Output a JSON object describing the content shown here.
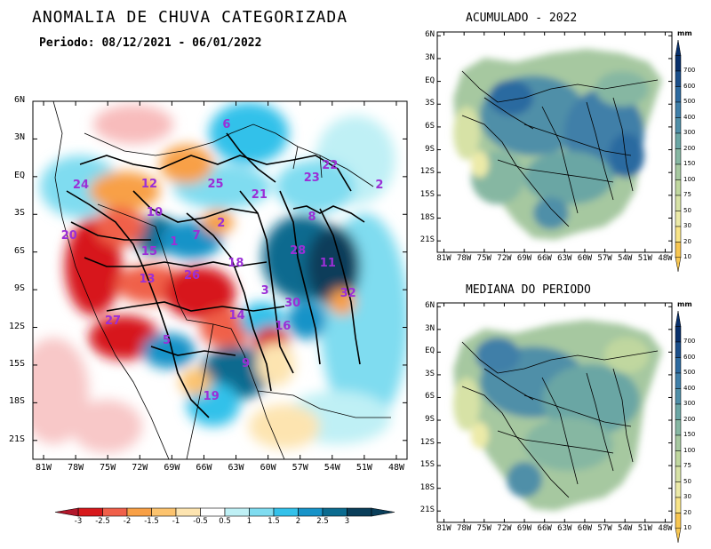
{
  "header": {
    "title": "ANOMALIA DE CHUVA CATEGORIZADA",
    "period": "Periodo: 08/12/2021 - 06/01/2022"
  },
  "main_map": {
    "lat_labels": [
      "6N",
      "3N",
      "EQ",
      "3S",
      "6S",
      "9S",
      "12S",
      "15S",
      "18S",
      "21S"
    ],
    "lon_labels": [
      "81W",
      "78W",
      "75W",
      "72W",
      "69W",
      "66W",
      "63W",
      "60W",
      "57W",
      "54W",
      "51W",
      "48W"
    ],
    "basins": [
      {
        "id": "24",
        "x": -77.6,
        "y": -0.8
      },
      {
        "id": "12",
        "x": -71.2,
        "y": -0.7
      },
      {
        "id": "25",
        "x": -65.0,
        "y": -0.7
      },
      {
        "id": "21",
        "x": -60.9,
        "y": -1.6
      },
      {
        "id": "23",
        "x": -56.0,
        "y": -0.2
      },
      {
        "id": "22",
        "x": -54.3,
        "y": 0.8
      },
      {
        "id": "2",
        "x": -49.3,
        "y": -0.8
      },
      {
        "id": "6",
        "x": -63.6,
        "y": 4.0
      },
      {
        "id": "10",
        "x": -70.7,
        "y": -3.0
      },
      {
        "id": "2",
        "x": -64.1,
        "y": -3.8
      },
      {
        "id": "8",
        "x": -55.6,
        "y": -3.3
      },
      {
        "id": "20",
        "x": -78.7,
        "y": -4.8
      },
      {
        "id": "1",
        "x": -68.5,
        "y": -5.3
      },
      {
        "id": "7",
        "x": -66.4,
        "y": -4.8
      },
      {
        "id": "15",
        "x": -71.2,
        "y": -6.1
      },
      {
        "id": "28",
        "x": -57.3,
        "y": -6.0
      },
      {
        "id": "18",
        "x": -63.1,
        "y": -7.0
      },
      {
        "id": "11",
        "x": -54.5,
        "y": -7.0
      },
      {
        "id": "13",
        "x": -71.4,
        "y": -8.3
      },
      {
        "id": "26",
        "x": -67.2,
        "y": -8.0
      },
      {
        "id": "3",
        "x": -60.0,
        "y": -9.2
      },
      {
        "id": "32",
        "x": -52.6,
        "y": -9.4
      },
      {
        "id": "30",
        "x": -57.8,
        "y": -10.2
      },
      {
        "id": "14",
        "x": -63.0,
        "y": -11.2
      },
      {
        "id": "16",
        "x": -58.7,
        "y": -12.0
      },
      {
        "id": "27",
        "x": -74.6,
        "y": -11.6
      },
      {
        "id": "5",
        "x": -69.2,
        "y": -13.2
      },
      {
        "id": "9",
        "x": -61.8,
        "y": -15.0
      },
      {
        "id": "19",
        "x": -65.4,
        "y": -17.6
      }
    ]
  },
  "colorbar": {
    "labels": [
      "-3",
      "-2.5",
      "-2",
      "-1.5",
      "-1",
      "-0.5",
      "0.5",
      "1",
      "1.5",
      "2",
      "2.5",
      "3"
    ],
    "colors": [
      "#d7191c",
      "#f0604a",
      "#f8a046",
      "#fcc36e",
      "#fde4b0",
      "#ffffff",
      "#bff0f5",
      "#7fdcf0",
      "#33c1ea",
      "#1793c8",
      "#0b6b8f",
      "#0a3e5a"
    ]
  },
  "accumulated": {
    "title": "ACUMULADO - 2022"
  },
  "median": {
    "title": "MEDIANA DO PERIODO"
  },
  "small_map": {
    "lat_labels": [
      "6N",
      "3N",
      "EQ",
      "3S",
      "6S",
      "9S",
      "12S",
      "15S",
      "18S",
      "21S"
    ],
    "lon_labels": [
      "81W",
      "78W",
      "75W",
      "72W",
      "69W",
      "66W",
      "63W",
      "60W",
      "57W",
      "54W",
      "51W",
      "48W"
    ]
  },
  "vcolorbar": {
    "unit": "mm",
    "labels": [
      "700",
      "600",
      "500",
      "400",
      "300",
      "200",
      "150",
      "100",
      "75",
      "50",
      "30",
      "20",
      "10"
    ],
    "colors": [
      "#08306b",
      "#1b4f8a",
      "#2c6aa0",
      "#3f7fa8",
      "#4f8fa8",
      "#6aa6a4",
      "#86b7a2",
      "#a6c8a0",
      "#c0d79f",
      "#d7e2a6",
      "#eceaa8",
      "#f8e487",
      "#f7c650"
    ]
  }
}
